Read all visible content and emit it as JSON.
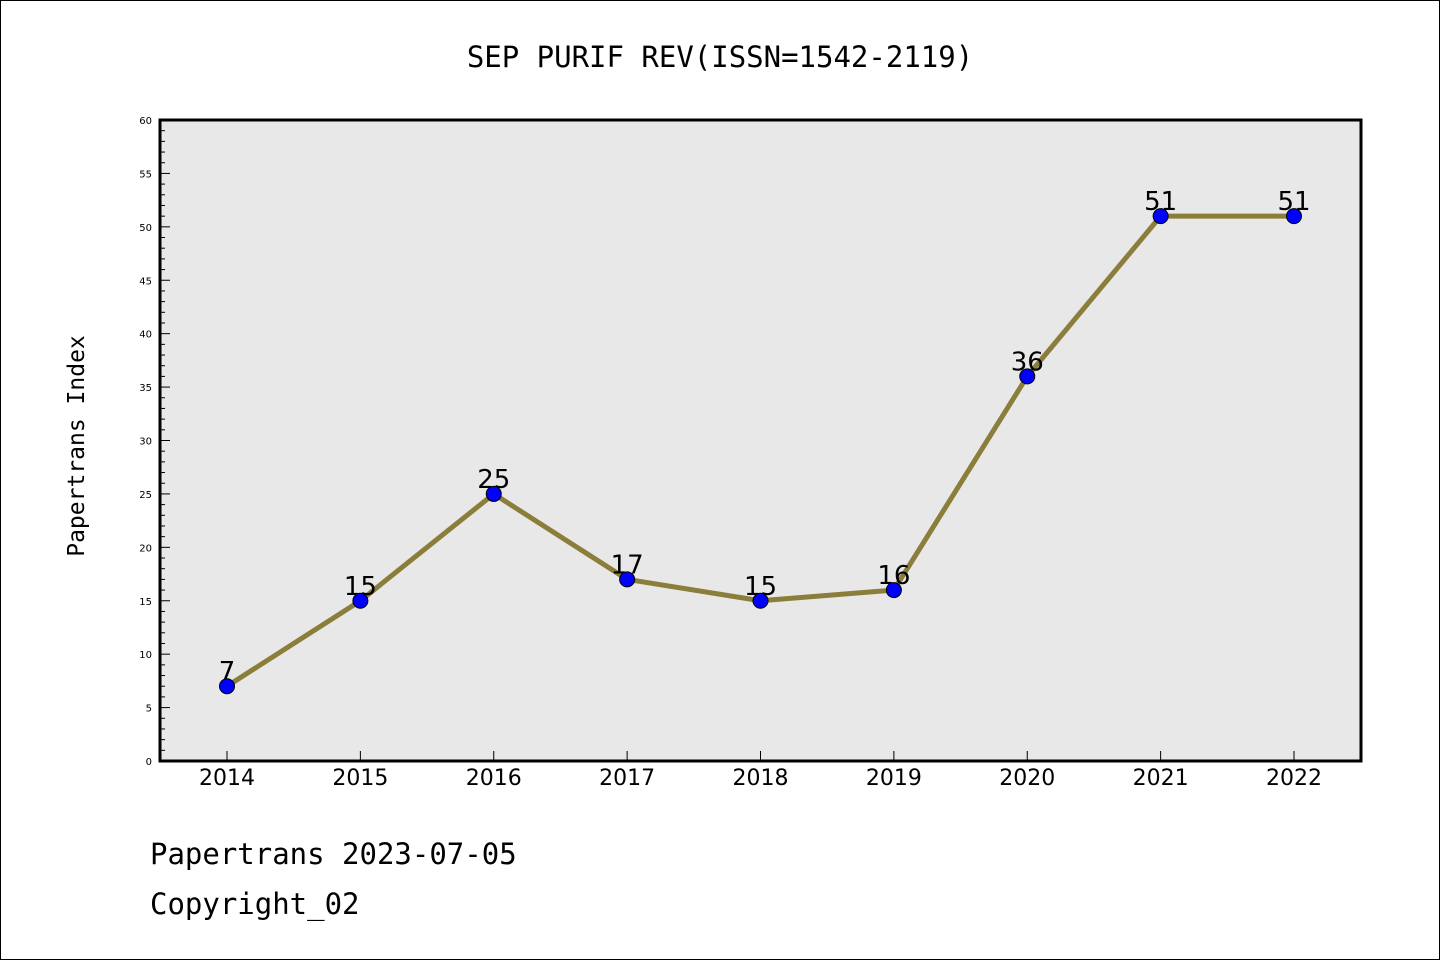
{
  "chart_data": {
    "type": "line",
    "title": "SEP PURIF REV(ISSN=1542-2119)",
    "xlabel": "",
    "ylabel": "Papertrans Index",
    "categories": [
      "2014",
      "2015",
      "2016",
      "2017",
      "2018",
      "2019",
      "2020",
      "2021",
      "2022"
    ],
    "series": [
      {
        "values": [
          7,
          15,
          25,
          17,
          15,
          16,
          36,
          51,
          51
        ]
      }
    ],
    "ylim": [
      0,
      60
    ],
    "yticks": [
      0,
      5,
      10,
      15,
      20,
      25,
      30,
      35,
      40,
      45,
      50,
      55,
      60
    ],
    "grid": false,
    "colors": {
      "line": "#8b7d3a",
      "marker": "#0000ff",
      "plot_background": "#e8e8e8"
    }
  },
  "footer": {
    "line1": "Papertrans 2023-07-05",
    "line2": "Copyright_02"
  }
}
